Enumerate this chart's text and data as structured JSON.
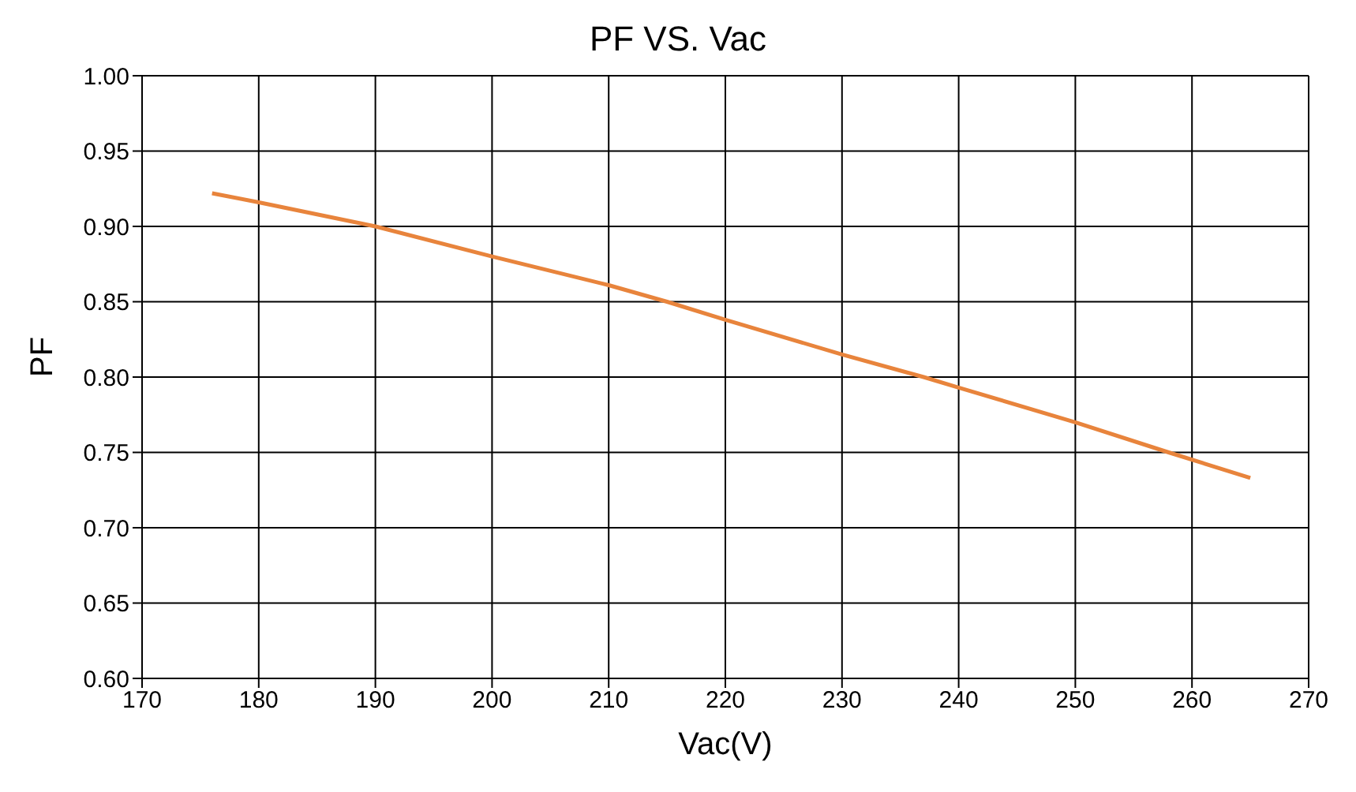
{
  "chart_data": {
    "type": "line",
    "title": "PF VS. Vac",
    "xlabel": "Vac(V)",
    "ylabel": "PF",
    "x": [
      176,
      180,
      190,
      200,
      210,
      215,
      220,
      230,
      237,
      240,
      250,
      258,
      265
    ],
    "series": [
      {
        "color": "#e8843c",
        "values": [
          0.922,
          0.916,
          0.9,
          0.88,
          0.861,
          0.85,
          0.838,
          0.815,
          0.8,
          0.793,
          0.77,
          0.75,
          0.733
        ]
      }
    ],
    "xlim": [
      170,
      270
    ],
    "xticks": [
      170,
      180,
      190,
      200,
      210,
      220,
      230,
      240,
      250,
      260,
      270
    ],
    "ylim": [
      0.6,
      1.0
    ],
    "yticks": [
      {
        "value": 0.6,
        "label": "0.60"
      },
      {
        "value": 0.65,
        "label": "0.65"
      },
      {
        "value": 0.7,
        "label": "0.70"
      },
      {
        "value": 0.75,
        "label": "0.75"
      },
      {
        "value": 0.8,
        "label": "0.80"
      },
      {
        "value": 0.85,
        "label": "0.85"
      },
      {
        "value": 0.9,
        "label": "0.90"
      },
      {
        "value": 0.95,
        "label": "0.95"
      },
      {
        "value": 1.0,
        "label": "1.00"
      }
    ],
    "grid": true,
    "marker": "none",
    "line_style": "solid",
    "legend": false
  }
}
